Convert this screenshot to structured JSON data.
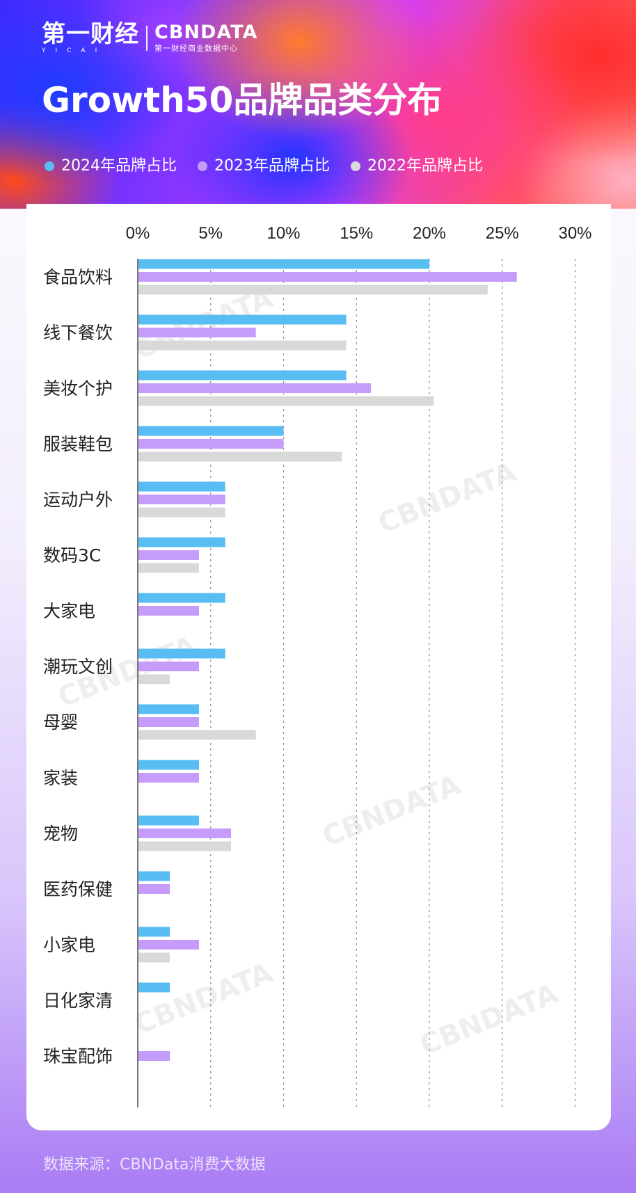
{
  "brand": {
    "logo_main": "第一财经",
    "logo_latin": "YICAI",
    "logo_cbn": "CBNDATA",
    "logo_cbn_sub": "第一财经商业数据中心",
    "watermark": "CBNDATA"
  },
  "title": "Growth50品牌品类分布",
  "legend": [
    {
      "label": "2024年品牌占比",
      "color": "#58bdf2"
    },
    {
      "label": "2023年品牌占比",
      "color": "#c59cf9"
    },
    {
      "label": "2022年品牌占比",
      "color": "#d9d9d9"
    }
  ],
  "footer": "数据来源：CBNData消费大数据",
  "chart_data": {
    "type": "bar",
    "orientation": "horizontal",
    "title": "Growth50品牌品类分布",
    "xlim": [
      0,
      30
    ],
    "x_ticks": [
      "0%",
      "5%",
      "10%",
      "15%",
      "20%",
      "25%",
      "30%"
    ],
    "grid": "vertical dashed",
    "legend_position": "top",
    "categories": [
      "食品饮料",
      "线下餐饮",
      "美妆个护",
      "服装鞋包",
      "运动户外",
      "数码3C",
      "大家电",
      "潮玩文创",
      "母婴",
      "家装",
      "宠物",
      "医药保健",
      "小家电",
      "日化家清",
      "珠宝配饰"
    ],
    "series": [
      {
        "name": "2024年品牌占比",
        "color": "#58bdf2",
        "values": [
          20,
          14.3,
          14.3,
          10,
          6,
          6,
          6,
          6,
          4.2,
          4.2,
          4.2,
          2.2,
          2.2,
          2.2,
          0
        ]
      },
      {
        "name": "2023年品牌占比",
        "color": "#c59cf9",
        "values": [
          26,
          8.1,
          16,
          10,
          6,
          4.2,
          4.2,
          4.2,
          4.2,
          4.2,
          6.4,
          2.2,
          4.2,
          0,
          2.2
        ]
      },
      {
        "name": "2022年品牌占比",
        "color": "#d9d9d9",
        "values": [
          24,
          14.3,
          20.3,
          14,
          6,
          4.2,
          0,
          2.2,
          8.1,
          0,
          6.4,
          0,
          2.2,
          0,
          0
        ]
      }
    ]
  }
}
